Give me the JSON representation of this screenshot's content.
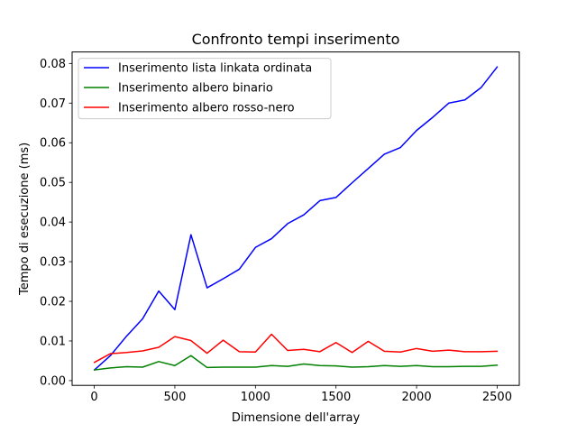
{
  "chart_data": {
    "type": "line",
    "title": "Confronto tempi inserimento",
    "xlabel": "Dimensione dell'array",
    "ylabel": "Tempo di esecuzione (ms)",
    "xlim": [
      -137.5,
      2637.5
    ],
    "ylim": [
      -0.0012,
      0.0829
    ],
    "xticks": [
      0,
      500,
      1000,
      1500,
      2000,
      2500
    ],
    "xtick_labels": [
      "0",
      "500",
      "1000",
      "1500",
      "2000",
      "2500"
    ],
    "yticks": [
      0.0,
      0.01,
      0.02,
      0.03,
      0.04,
      0.05,
      0.06,
      0.07,
      0.08
    ],
    "ytick_labels": [
      "0.00",
      "0.01",
      "0.02",
      "0.03",
      "0.04",
      "0.05",
      "0.06",
      "0.07",
      "0.08"
    ],
    "grid": false,
    "legend_position": "top-left",
    "x": [
      1,
      100,
      200,
      300,
      400,
      500,
      600,
      700,
      800,
      900,
      1000,
      1100,
      1200,
      1300,
      1400,
      1500,
      1600,
      1700,
      1800,
      1900,
      2000,
      2100,
      2200,
      2300,
      2400,
      2500
    ],
    "series": [
      {
        "name": "Inserimento lista linkata ordinata",
        "color": "#0000ff",
        "values": [
          0.0027,
          0.0063,
          0.0112,
          0.0156,
          0.0226,
          0.0179,
          0.0368,
          0.0234,
          0.0257,
          0.0281,
          0.0336,
          0.0358,
          0.0396,
          0.0418,
          0.0454,
          0.0462,
          0.0499,
          0.0535,
          0.0571,
          0.0588,
          0.0631,
          0.0664,
          0.07,
          0.0708,
          0.0739,
          0.0791
        ]
      },
      {
        "name": "Inserimento albero binario",
        "color": "#008000",
        "values": [
          0.0027,
          0.0032,
          0.0035,
          0.0034,
          0.0048,
          0.0038,
          0.0063,
          0.0033,
          0.0034,
          0.0034,
          0.0034,
          0.0038,
          0.0036,
          0.0042,
          0.0038,
          0.0037,
          0.0034,
          0.0035,
          0.0038,
          0.0036,
          0.0038,
          0.0035,
          0.0035,
          0.0036,
          0.0036,
          0.0039
        ]
      },
      {
        "name": "Inserimento albero rosso-nero",
        "color": "#ff0000",
        "values": [
          0.0046,
          0.0068,
          0.0071,
          0.0075,
          0.0084,
          0.0111,
          0.0101,
          0.0069,
          0.0102,
          0.0073,
          0.0072,
          0.0117,
          0.0076,
          0.0079,
          0.0073,
          0.0096,
          0.0071,
          0.0099,
          0.0074,
          0.0072,
          0.0081,
          0.0074,
          0.0077,
          0.0073,
          0.0073,
          0.0074
        ]
      }
    ]
  }
}
